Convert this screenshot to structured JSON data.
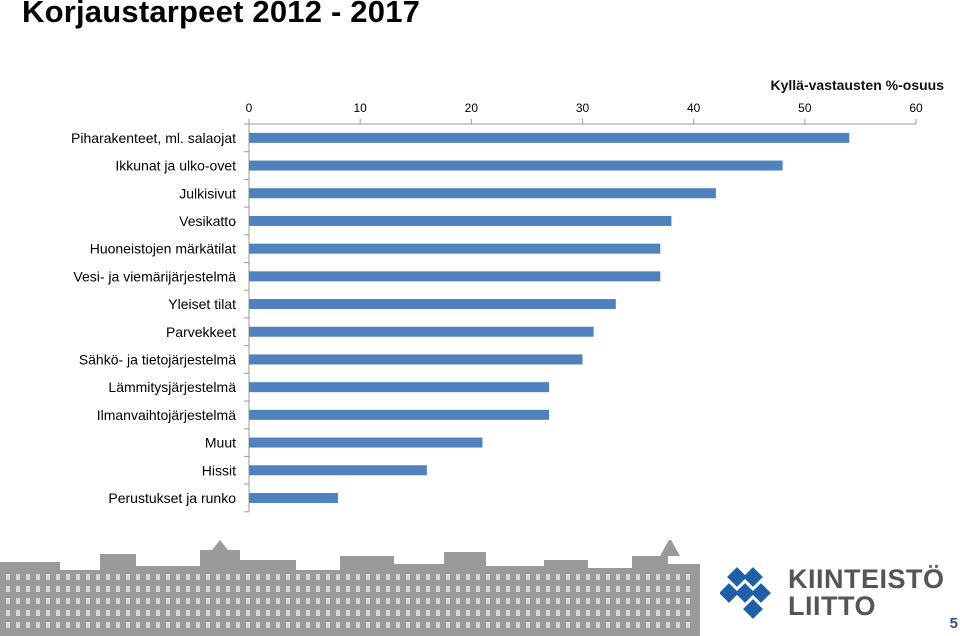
{
  "page": {
    "title": "Korjaustarpeet  2012 - 2017",
    "page_number": "5"
  },
  "logo": {
    "line1": "KIINTEISTÖ",
    "line2": "LIITTO",
    "colors": {
      "mark": "#1f5fa6",
      "text": "#555555"
    }
  },
  "chart_data": {
    "type": "bar",
    "orientation": "horizontal",
    "title": "",
    "xlabel": "Kyllä-vastausten %-osuus",
    "ylabel": "",
    "xlim": [
      0,
      60
    ],
    "xticks": [
      0,
      10,
      20,
      30,
      40,
      50,
      60
    ],
    "x_axis_position": "top",
    "grid": false,
    "legend": "none",
    "bar_color": "#4f81bd",
    "categories": [
      "Piharakenteet, ml. salaojat",
      "Ikkunat ja ulko-ovet",
      "Julkisivut",
      "Vesikatto",
      "Huoneistojen märkätilat",
      "Vesi- ja viemärijärjestelmä",
      "Yleiset tilat",
      "Parvekkeet",
      "Sähkö- ja tietojärjestelmä",
      "Lämmitysjärjestelmä",
      "Ilmanvaihtojärjestelmä",
      "Muut",
      "Hissit",
      "Perustukset ja runko"
    ],
    "values": [
      54,
      48,
      42,
      38,
      37,
      37,
      33,
      31,
      30,
      27,
      27,
      21,
      16,
      8
    ]
  }
}
